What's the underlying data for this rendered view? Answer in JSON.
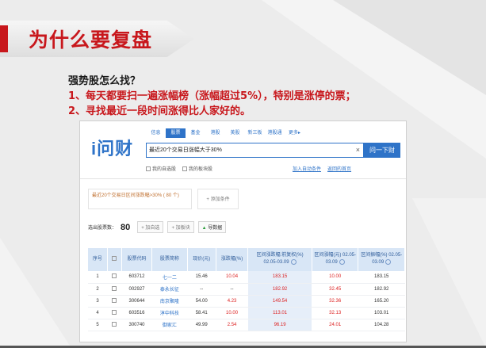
{
  "slide": {
    "title": "为什么要复盘",
    "lead": "强势股怎么找？",
    "points": [
      "1、每天都要扫一遍涨幅榜（涨幅超过5%），特别是涨停的票；",
      "2、寻找最近一段时间涨得比人家好的。"
    ]
  },
  "app": {
    "logo": "i问财",
    "tabs": [
      "信息",
      "股票",
      "基金",
      "港股",
      "美股",
      "新三板",
      "港股通",
      "更多▸"
    ],
    "active_tab": 1,
    "search_value": "最近20个交易日涨幅大于30%",
    "search_clear": "×",
    "search_button": "问一下财",
    "options": [
      "我的自选股",
      "我的板块股"
    ],
    "links": [
      "加入自动条件",
      "返回的首页"
    ],
    "condition_text": "最近20个交易日区间涨跌幅>30% ( 80 个)",
    "add_condition": "+ 添加条件",
    "result_label": "选出股票数：",
    "result_count": "80",
    "toolbar": [
      "+ 加自选",
      "+ 加板块"
    ],
    "export_label": "导数据",
    "table": {
      "headers": [
        "序号",
        "",
        "股票代码",
        "股票简称",
        "现价(元)",
        "涨跌幅(%)",
        "区间涨跌幅:前复权(%) 02.05-03.09",
        "区间涨幅(元) 02.05-03.09",
        "区间振幅(%) 02.05-03.09"
      ],
      "rows": [
        {
          "idx": "1",
          "code": "603712",
          "name": "七一二",
          "price": "15.46",
          "chg": "10.04",
          "range": "183.15",
          "amt": "10.00",
          "amp": "183.15"
        },
        {
          "idx": "2",
          "code": "002927",
          "name": "泰永长征",
          "price": "--",
          "chg": "--",
          "range": "182.92",
          "amt": "32.45",
          "amp": "182.92"
        },
        {
          "idx": "3",
          "code": "300644",
          "name": "南京聚隆",
          "price": "54.00",
          "chg": "4.23",
          "range": "149.54",
          "amt": "32.36",
          "amp": "165.20"
        },
        {
          "idx": "4",
          "code": "603516",
          "name": "淳中科技",
          "price": "58.41",
          "chg": "10.00",
          "range": "113.01",
          "amt": "32.13",
          "amp": "103.01"
        },
        {
          "idx": "5",
          "code": "300740",
          "name": "御家汇",
          "price": "49.99",
          "chg": "2.54",
          "range": "96.19",
          "amt": "24.01",
          "amp": "104.28"
        }
      ]
    }
  }
}
